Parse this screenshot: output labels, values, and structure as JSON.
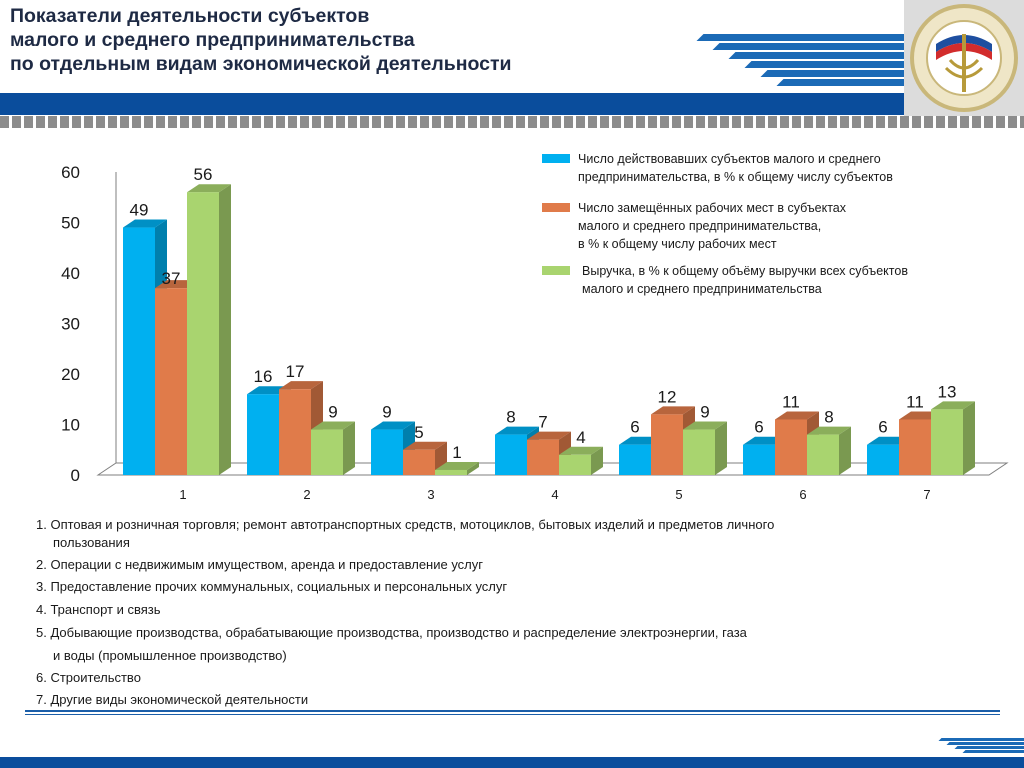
{
  "header": {
    "title_lines": [
      "Показатели деятельности субъектов",
      "малого и среднего предпринимательства",
      "по отдельным видам экономической деятельности"
    ]
  },
  "colors": {
    "header_band": "#0a4d9c",
    "accent_stripe": "#1b6ab6"
  },
  "chart_data": {
    "type": "bar",
    "categories": [
      "1",
      "2",
      "3",
      "4",
      "5",
      "6",
      "7"
    ],
    "ylim": [
      0,
      60
    ],
    "yticks": [
      0,
      10,
      20,
      30,
      40,
      50,
      60
    ],
    "grid": false,
    "legend_position": "top-right",
    "series": [
      {
        "name": "Число действовавших субъектов малого и среднего предпринимательства, в % к общему числу субъектов",
        "legend_lines": [
          "Число действовавших субъектов малого и среднего",
          "предпринимательства, в % к общему числу субъектов"
        ],
        "values": [
          49,
          16,
          9,
          8,
          6,
          6,
          6
        ],
        "color": "#00b0f0"
      },
      {
        "name": "Число замещённых рабочих мест в субъектах малого и среднего предпринимательства, в % к общему числу рабочих мест",
        "legend_lines": [
          "Число замещённых рабочих мест в субъектах",
          "малого и среднего предпринимательства,",
          "в % к общему числу рабочих мест"
        ],
        "values": [
          37,
          17,
          5,
          7,
          12,
          11,
          11
        ],
        "color": "#e07b4a"
      },
      {
        "name": "Выручка, в % к общему объёму выручки всех субъектов малого и среднего предпринимательства",
        "legend_lines": [
          "Выручка, в % к общему объёму выручки всех субъектов",
          "малого и среднего предпринимательства"
        ],
        "values": [
          56,
          9,
          1,
          4,
          9,
          8,
          13
        ],
        "color": "#a9d46f"
      }
    ]
  },
  "notes": [
    {
      "first": "1. Оптовая и розничная торговля; ремонт  автотранспортных средств,  мотоциклов, бытовых изделий и предметов личного",
      "cont": "пользования"
    },
    {
      "first": "2. Операции с недвижимым имуществом, аренда и предоставление услуг"
    },
    {
      "first": "3. Предоставление прочих коммунальных, социальных и персональных услуг"
    },
    {
      "first": "4. Транспорт и связь"
    },
    {
      "first": "5. Добывающие производства,  обрабатывающие производства,  производство и распределение  электроэнергии, газа",
      "cont": "и воды (промышленное производство)"
    },
    {
      "first": "6. Строительство"
    },
    {
      "first": "7. Другие виды экономической  деятельности"
    }
  ]
}
